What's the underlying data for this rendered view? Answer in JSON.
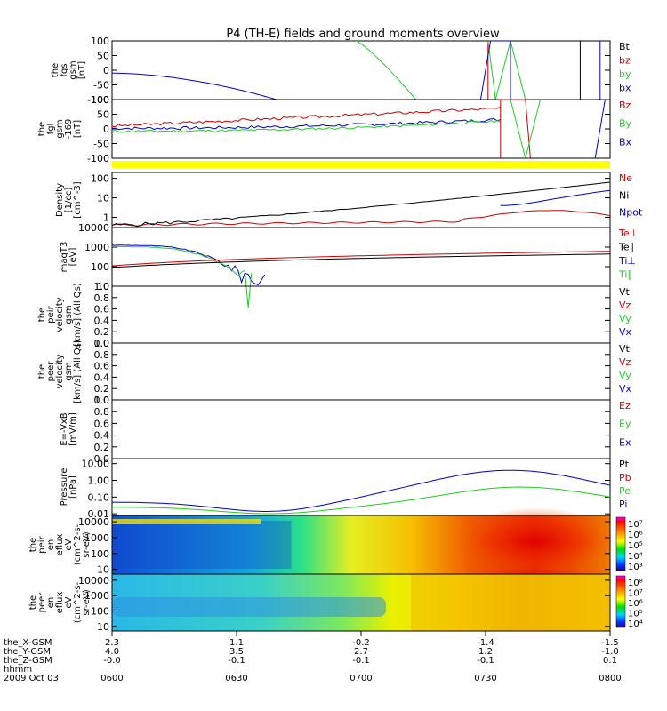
{
  "title": "P4 (TH-E) fields and ground moments overview",
  "colors": {
    "black": "#000000",
    "red": "#cc0000",
    "green": "#22cc22",
    "blue": "#0000cc",
    "yellow": "#ffff00"
  },
  "time_axis": {
    "ticks": [
      "0600",
      "0630",
      "0700",
      "0730",
      "0800"
    ],
    "date": "2009 Oct 03",
    "rows": [
      {
        "label": "the_X-GSM",
        "values": [
          "2.3",
          "1.1",
          "-0.2",
          "-1.4",
          "-1.5"
        ]
      },
      {
        "label": "the_Y-GSM",
        "values": [
          "4.0",
          "3.5",
          "2.7",
          "1.2",
          "-1.0"
        ]
      },
      {
        "label": "the_Z-GSM",
        "values": [
          "-0.0",
          "-0.1",
          "-0.1",
          "-0.1",
          "0.1"
        ]
      },
      {
        "label": "hhmm",
        "values": [],
        "show_ticks": true
      }
    ]
  },
  "chart_data": [
    {
      "type": "line",
      "id": "fgs",
      "ylabel": [
        "the",
        "fgs",
        "gsm",
        "[nT]"
      ],
      "ylim": [
        -100,
        100
      ],
      "yticks": [
        "100",
        "50",
        "0",
        "-50",
        "-100"
      ],
      "legend": [
        {
          "name": "Bt",
          "color": "black"
        },
        {
          "name": "bz",
          "color": "red"
        },
        {
          "name": "by",
          "color": "green"
        },
        {
          "name": "bx",
          "color": "blue"
        }
      ]
    },
    {
      "type": "line",
      "id": "fgl",
      "ylabel": [
        "the",
        "fgl",
        "gsm",
        "-169",
        "[nT]"
      ],
      "ylim": [
        -100,
        100
      ],
      "yticks": [
        "100",
        "50",
        "0",
        "-50",
        "-100"
      ],
      "legend": [
        {
          "name": "Bz",
          "color": "red"
        },
        {
          "name": "By",
          "color": "green"
        },
        {
          "name": "Bx",
          "color": "blue"
        }
      ]
    },
    {
      "type": "line",
      "id": "density",
      "ylabel": [
        "Density",
        "[1/cc]",
        "[cm^-3]"
      ],
      "ylim": [
        0.3,
        200
      ],
      "log": true,
      "yticks": [
        "100",
        "10",
        "1"
      ],
      "legend": [
        {
          "name": "Ne",
          "color": "red"
        },
        {
          "name": "Ni",
          "color": "black"
        },
        {
          "name": "Npot",
          "color": "blue"
        }
      ]
    },
    {
      "type": "line",
      "id": "temperature",
      "ylabel": [
        "magT3",
        "[eV]"
      ],
      "ylim": [
        10,
        10000
      ],
      "log": true,
      "yticks": [
        "10000",
        "1000",
        "100",
        "10"
      ],
      "legend": [
        {
          "name": "Te⊥",
          "color": "red"
        },
        {
          "name": "Te∥",
          "color": "black"
        },
        {
          "name": "Ti⊥",
          "color": "blue"
        },
        {
          "name": "Ti∥",
          "color": "green"
        }
      ]
    },
    {
      "type": "line",
      "id": "peir_velocity",
      "ylabel": [
        "the",
        "peir",
        "velocity",
        "gsm",
        "[km/s] (All Qs)"
      ],
      "ylim": [
        0,
        1
      ],
      "yticks": [
        "1.0",
        "0.8",
        "0.6",
        "0.4",
        "0.2",
        "0.0"
      ],
      "legend": [
        {
          "name": "Vt",
          "color": "black"
        },
        {
          "name": "Vz",
          "color": "red"
        },
        {
          "name": "Vy",
          "color": "green"
        },
        {
          "name": "Vx",
          "color": "blue"
        }
      ]
    },
    {
      "type": "line",
      "id": "peer_velocity",
      "ylabel": [
        "the",
        "peer",
        "velocity",
        "gsm",
        "[km/s] (All Qs)"
      ],
      "ylim": [
        0,
        1
      ],
      "yticks": [
        "1.0",
        "0.8",
        "0.6",
        "0.4",
        "0.2",
        "0.0"
      ],
      "legend": [
        {
          "name": "Vt",
          "color": "black"
        },
        {
          "name": "Vz",
          "color": "red"
        },
        {
          "name": "Vy",
          "color": "green"
        },
        {
          "name": "Vx",
          "color": "blue"
        }
      ]
    },
    {
      "type": "line",
      "id": "efield",
      "ylabel": [
        "E=-VxB",
        "[mV/m]"
      ],
      "ylim": [
        0,
        1
      ],
      "yticks": [
        "1.0",
        "0.8",
        "0.6",
        "0.4",
        "0.2",
        "0.0"
      ],
      "legend": [
        {
          "name": "Ez",
          "color": "red"
        },
        {
          "name": "Ey",
          "color": "green"
        },
        {
          "name": "Ex",
          "color": "blue"
        }
      ]
    },
    {
      "type": "line",
      "id": "pressure",
      "ylabel": [
        "Pressure",
        "[nPa]"
      ],
      "ylim": [
        0.008,
        20
      ],
      "log": true,
      "yticks": [
        "10.00",
        "1.00",
        "0.10",
        "0.01"
      ],
      "legend": [
        {
          "name": "Pt",
          "color": "black"
        },
        {
          "name": "Pb",
          "color": "red"
        },
        {
          "name": "Pe",
          "color": "green"
        },
        {
          "name": "Pi",
          "color": "blue"
        }
      ]
    },
    {
      "type": "heatmap",
      "id": "peir_spectrogram",
      "ylabel": [
        "the",
        "peir",
        "en",
        "eflux",
        "eV",
        "(cm^2-s-",
        "sr-eV)"
      ],
      "ylim": [
        5,
        25000
      ],
      "log": true,
      "yticks": [
        "10000",
        "1000",
        "100",
        "10"
      ],
      "colorbar": [
        "10⁷",
        "10⁶",
        "10⁵",
        "10⁴",
        "10³"
      ]
    },
    {
      "type": "heatmap",
      "id": "peer_spectrogram",
      "ylabel": [
        "the",
        "peer",
        "en",
        "eflux",
        "eV",
        "(cm^2-s-",
        "sr-eV)"
      ],
      "ylim": [
        5,
        25000
      ],
      "log": true,
      "yticks": [
        "10000",
        "1000",
        "100",
        "10"
      ],
      "colorbar": [
        "10⁸",
        "10⁷",
        "10⁶",
        "10⁵",
        "10⁴"
      ]
    }
  ]
}
